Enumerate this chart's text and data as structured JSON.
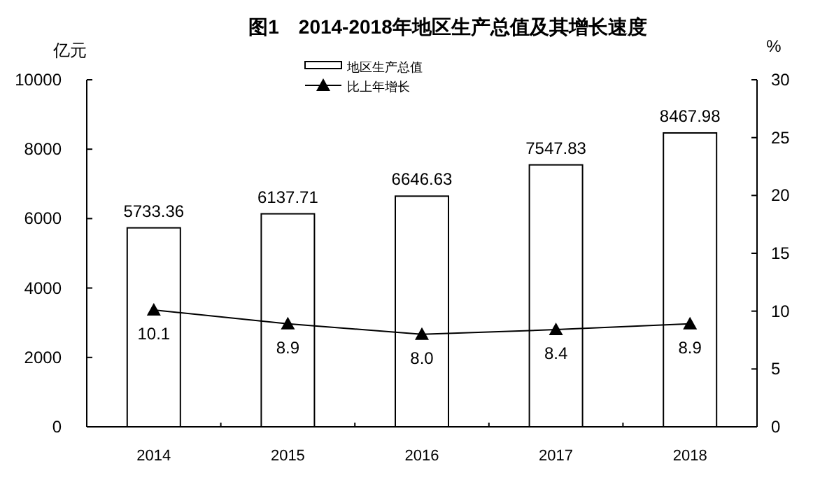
{
  "chart_data": {
    "type": "bar",
    "title": "图1　2014-2018年地区生产总值及其增长速度",
    "ylabel": "亿元",
    "y2label": "%",
    "categories": [
      "2014",
      "2015",
      "2016",
      "2017",
      "2018"
    ],
    "series": [
      {
        "name": "地区生产总值",
        "color": "#ffffff",
        "values": [
          5733.36,
          6137.71,
          6646.63,
          7547.83,
          8467.98
        ]
      },
      {
        "name": "比上年增长",
        "type": "line",
        "axis": "y2",
        "color": "#000000",
        "marker": "triangle",
        "values": [
          10.1,
          8.9,
          8.0,
          8.4,
          8.9
        ],
        "value_labels": [
          "10.1",
          "8.9",
          "8.0",
          "8.4",
          "8.9"
        ]
      }
    ],
    "ylim": [
      0,
      10000
    ],
    "yticks": [
      0,
      2000,
      4000,
      6000,
      8000,
      10000
    ],
    "y2lim": [
      0,
      30
    ],
    "y2ticks": [
      0,
      5,
      10,
      15,
      20,
      25,
      30
    ],
    "data_labels": true,
    "legend": "top",
    "grid": false
  }
}
